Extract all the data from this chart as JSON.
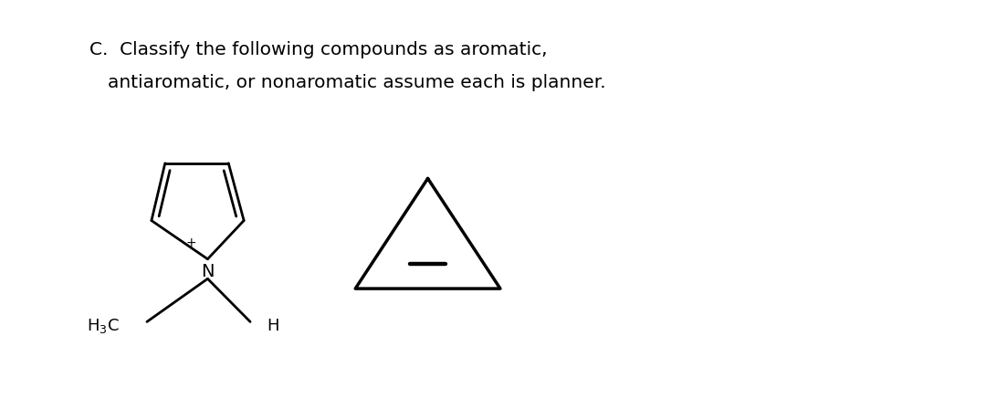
{
  "title_line1": "C.  Classify the following compounds as aromatic,",
  "title_line2": "antiaromatic, or nonaromatic assume each is planner.",
  "background_color": "#ffffff",
  "figsize": [
    10.91,
    4.37
  ],
  "dpi": 100,
  "text_color": "#000000",
  "title_fontsize": 14.5,
  "lw": 2.0
}
